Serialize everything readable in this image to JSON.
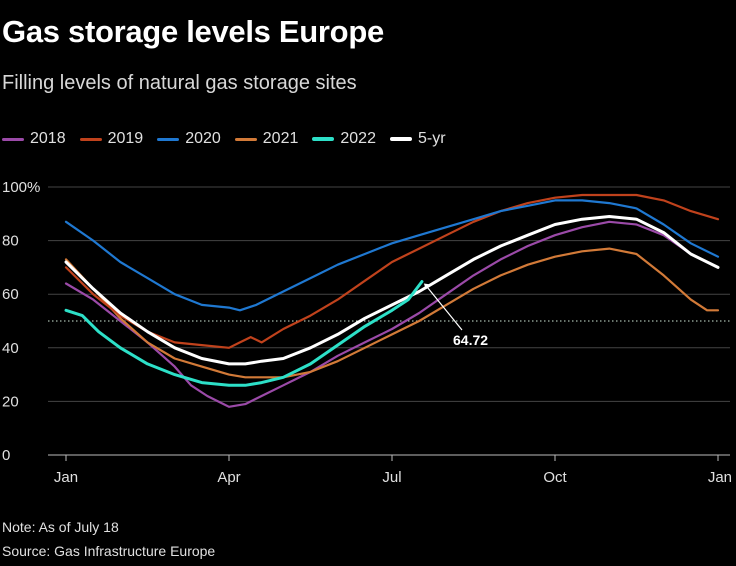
{
  "title": "Gas storage levels Europe",
  "subtitle": "Filling levels of natural gas storage sites",
  "note": "Note: As of July 18",
  "source": "Source: Gas Infrastructure Europe",
  "chart_data": {
    "type": "line",
    "x_ticks": [
      "Jan",
      "Apr",
      "Jul",
      "Oct",
      "Jan"
    ],
    "y_ticks": [
      "100%",
      "80",
      "60",
      "40",
      "20",
      "0"
    ],
    "ylim": [
      0,
      100
    ],
    "x_range_months": [
      0,
      12
    ],
    "reference_line": {
      "y": 50,
      "style": "dotted"
    },
    "annotation": {
      "label": "64.72",
      "x_month": 6.55,
      "y": 64.72
    },
    "legend_placement": "top-left",
    "series": [
      {
        "name": "2018",
        "color": "#9b4aa8",
        "points": [
          [
            0,
            64
          ],
          [
            0.5,
            58
          ],
          [
            1,
            50
          ],
          [
            1.5,
            42
          ],
          [
            2,
            33
          ],
          [
            2.3,
            26
          ],
          [
            2.6,
            22
          ],
          [
            2.9,
            19
          ],
          [
            3,
            18
          ],
          [
            3.3,
            19
          ],
          [
            3.6,
            22
          ],
          [
            4,
            26
          ],
          [
            4.5,
            31
          ],
          [
            5,
            37
          ],
          [
            5.5,
            42
          ],
          [
            6,
            47
          ],
          [
            6.5,
            53
          ],
          [
            7,
            60
          ],
          [
            7.5,
            67
          ],
          [
            8,
            73
          ],
          [
            8.5,
            78
          ],
          [
            9,
            82
          ],
          [
            9.5,
            85
          ],
          [
            10,
            87
          ],
          [
            10.5,
            86
          ],
          [
            11,
            82
          ],
          [
            11.5,
            75
          ],
          [
            12,
            70
          ]
        ]
      },
      {
        "name": "2019",
        "color": "#c0421c",
        "points": [
          [
            0,
            70
          ],
          [
            0.5,
            60
          ],
          [
            1,
            52
          ],
          [
            1.5,
            46
          ],
          [
            2,
            42
          ],
          [
            2.5,
            41
          ],
          [
            3,
            40
          ],
          [
            3.2,
            42
          ],
          [
            3.4,
            44
          ],
          [
            3.6,
            42
          ],
          [
            4,
            47
          ],
          [
            4.5,
            52
          ],
          [
            5,
            58
          ],
          [
            5.5,
            65
          ],
          [
            6,
            72
          ],
          [
            6.5,
            77
          ],
          [
            7,
            82
          ],
          [
            7.5,
            87
          ],
          [
            8,
            91
          ],
          [
            8.5,
            94
          ],
          [
            9,
            96
          ],
          [
            9.5,
            97
          ],
          [
            10,
            97
          ],
          [
            10.5,
            97
          ],
          [
            11,
            95
          ],
          [
            11.5,
            91
          ],
          [
            12,
            88
          ]
        ]
      },
      {
        "name": "2020",
        "color": "#1f78d1",
        "points": [
          [
            0,
            87
          ],
          [
            0.5,
            80
          ],
          [
            1,
            72
          ],
          [
            1.5,
            66
          ],
          [
            2,
            60
          ],
          [
            2.5,
            56
          ],
          [
            3,
            55
          ],
          [
            3.2,
            54
          ],
          [
            3.5,
            56
          ],
          [
            4,
            61
          ],
          [
            4.5,
            66
          ],
          [
            5,
            71
          ],
          [
            5.5,
            75
          ],
          [
            6,
            79
          ],
          [
            6.5,
            82
          ],
          [
            7,
            85
          ],
          [
            7.5,
            88
          ],
          [
            8,
            91
          ],
          [
            8.5,
            93
          ],
          [
            9,
            95
          ],
          [
            9.5,
            95
          ],
          [
            10,
            94
          ],
          [
            10.5,
            92
          ],
          [
            11,
            86
          ],
          [
            11.5,
            79
          ],
          [
            12,
            74
          ]
        ]
      },
      {
        "name": "2021",
        "color": "#d27a38",
        "points": [
          [
            0,
            73
          ],
          [
            0.5,
            62
          ],
          [
            1,
            51
          ],
          [
            1.5,
            42
          ],
          [
            2,
            36
          ],
          [
            2.5,
            33
          ],
          [
            3,
            30
          ],
          [
            3.3,
            29
          ],
          [
            3.6,
            29
          ],
          [
            4,
            29
          ],
          [
            4.5,
            31
          ],
          [
            5,
            35
          ],
          [
            5.5,
            40
          ],
          [
            6,
            45
          ],
          [
            6.5,
            50
          ],
          [
            7,
            56
          ],
          [
            7.5,
            62
          ],
          [
            8,
            67
          ],
          [
            8.5,
            71
          ],
          [
            9,
            74
          ],
          [
            9.5,
            76
          ],
          [
            10,
            77
          ],
          [
            10.5,
            75
          ],
          [
            11,
            67
          ],
          [
            11.5,
            58
          ],
          [
            11.8,
            54
          ],
          [
            12,
            54
          ]
        ]
      },
      {
        "name": "2022",
        "color": "#2de0c8",
        "points": [
          [
            0,
            54
          ],
          [
            0.3,
            52
          ],
          [
            0.6,
            46
          ],
          [
            1,
            40
          ],
          [
            1.5,
            34
          ],
          [
            2,
            30
          ],
          [
            2.5,
            27
          ],
          [
            3,
            26
          ],
          [
            3.3,
            26
          ],
          [
            3.6,
            27
          ],
          [
            4,
            29
          ],
          [
            4.5,
            34
          ],
          [
            5,
            41
          ],
          [
            5.5,
            48
          ],
          [
            6,
            54
          ],
          [
            6.3,
            58
          ],
          [
            6.55,
            64.72
          ]
        ]
      },
      {
        "name": "5-yr",
        "color": "#ffffff",
        "points": [
          [
            0,
            72
          ],
          [
            0.5,
            62
          ],
          [
            1,
            53
          ],
          [
            1.5,
            46
          ],
          [
            2,
            40
          ],
          [
            2.5,
            36
          ],
          [
            3,
            34
          ],
          [
            3.3,
            34
          ],
          [
            3.6,
            35
          ],
          [
            4,
            36
          ],
          [
            4.5,
            40
          ],
          [
            5,
            45
          ],
          [
            5.5,
            51
          ],
          [
            6,
            56
          ],
          [
            6.5,
            61
          ],
          [
            7,
            67
          ],
          [
            7.5,
            73
          ],
          [
            8,
            78
          ],
          [
            8.5,
            82
          ],
          [
            9,
            86
          ],
          [
            9.5,
            88
          ],
          [
            10,
            89
          ],
          [
            10.5,
            88
          ],
          [
            11,
            83
          ],
          [
            11.5,
            75
          ],
          [
            12,
            70
          ]
        ]
      }
    ]
  }
}
